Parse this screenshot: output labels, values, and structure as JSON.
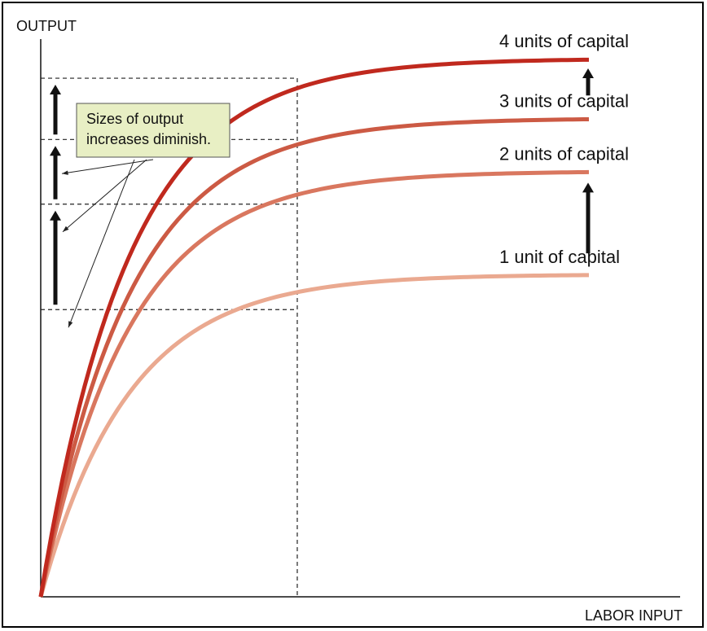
{
  "chart_data": {
    "type": "line",
    "title": "",
    "ylabel": "OUTPUT",
    "xlabel": "LABOR INPUT",
    "xlim": [
      0,
      1
    ],
    "ylim": [
      0,
      1
    ],
    "grid": false,
    "legend": "none",
    "note": "Sizes of output increases diminish.",
    "note_color": "#e8efc4",
    "reference_x": 0.468,
    "series": [
      {
        "name": "1 unit of capital",
        "color": "#eaa990",
        "asymptote": 0.578,
        "x": [
          0,
          0.1,
          0.2,
          0.3,
          0.468,
          0.7,
          0.9,
          1.0
        ],
        "values": [
          0,
          0.193,
          0.331,
          0.424,
          0.515,
          0.558,
          0.572,
          0.574
        ]
      },
      {
        "name": "2 units of capital",
        "color": "#d9775f",
        "asymptote": 0.763,
        "x": [
          0,
          0.1,
          0.2,
          0.3,
          0.468,
          0.7,
          0.9,
          1.0
        ],
        "values": [
          0,
          0.327,
          0.513,
          0.618,
          0.704,
          0.745,
          0.757,
          0.76
        ]
      },
      {
        "name": "3 units of capital",
        "color": "#cc5a44",
        "asymptote": 0.858,
        "x": [
          0,
          0.1,
          0.2,
          0.3,
          0.468,
          0.7,
          0.9,
          1.0
        ],
        "values": [
          0,
          0.409,
          0.624,
          0.737,
          0.82,
          0.849,
          0.855,
          0.856
        ]
      },
      {
        "name": "4 units of capital",
        "color": "#c0291e",
        "asymptote": 0.965,
        "x": [
          0,
          0.1,
          0.2,
          0.3,
          0.468,
          0.7,
          0.9,
          1.0
        ],
        "values": [
          0,
          0.459,
          0.7,
          0.826,
          0.924,
          0.956,
          0.962,
          0.963
        ]
      }
    ]
  }
}
